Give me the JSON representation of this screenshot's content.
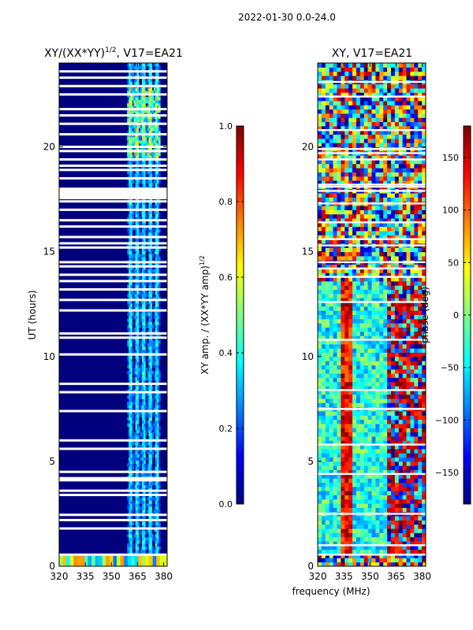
{
  "figure_title": "2022-01-30 0.0-24.0",
  "xlabel": "frequency (MHz)",
  "colors": {
    "jet": [
      "#00007f",
      "#0000ff",
      "#007fff",
      "#00ffff",
      "#7fff7f",
      "#ffff00",
      "#ff7f00",
      "#ff0000",
      "#7f0000"
    ],
    "gap": "#ffffff",
    "background": "#00007f"
  },
  "chart_data": [
    {
      "type": "heatmap",
      "title_main": "XY/(XX*YY)",
      "title_sup": "1/2",
      "title_rest": ", V17=EA21",
      "ylabel": "UT (hours)",
      "xlim": [
        320,
        382
      ],
      "ylim": [
        0,
        24
      ],
      "x_ticks": [
        320,
        335,
        350,
        365,
        380
      ],
      "y_ticks": [
        0,
        5,
        10,
        15,
        20
      ],
      "signal_band_mhz": [
        359,
        378
      ],
      "colorbar": {
        "label": "XY amp. / (XX*YY amp)",
        "label_sup": "1/2",
        "range": [
          0.0,
          1.0
        ],
        "ticks": [
          "0.0",
          "0.2",
          "0.4",
          "0.6",
          "0.8",
          "1.0"
        ]
      },
      "gaps_hours": [
        0.55,
        1.8,
        2.2,
        2.45,
        3.4,
        3.6,
        4.1,
        4.2,
        4.5,
        5.6,
        6.0,
        7.4,
        8.3,
        8.7,
        10.1,
        10.9,
        11.1,
        12.2,
        12.7,
        13.2,
        13.6,
        13.9,
        14.3,
        14.5,
        15.2,
        15.4,
        15.7,
        16.2,
        16.5,
        17.0,
        17.4,
        17.7,
        18.0,
        18.5,
        18.9,
        19.1,
        19.4,
        19.8,
        20.0,
        20.6,
        21.1,
        21.5,
        21.8,
        22.5,
        22.9,
        23.3,
        23.6
      ]
    },
    {
      "type": "heatmap",
      "title_main": "XY, V17=EA21",
      "ylabel": "",
      "xlim": [
        320,
        382
      ],
      "ylim": [
        0,
        24
      ],
      "x_ticks": [
        320,
        335,
        350,
        365,
        380
      ],
      "y_ticks": [
        0,
        5,
        10,
        15,
        20
      ],
      "colorbar": {
        "label": "phase (deg)",
        "range": [
          -180,
          180
        ],
        "ticks": [
          "−150",
          "−100",
          "−50",
          "0",
          "50",
          "100",
          "150"
        ]
      },
      "gaps_hours": [
        0.55,
        1.0,
        2.5,
        4.4,
        5.8,
        7.5,
        8.4,
        10.8,
        12.6,
        13.8,
        14.2,
        14.5,
        15.3,
        15.6,
        16.4,
        17.3,
        17.9,
        18.1,
        18.2,
        19.4,
        19.7,
        19.9,
        20.8,
        22.4,
        23.1
      ]
    }
  ]
}
